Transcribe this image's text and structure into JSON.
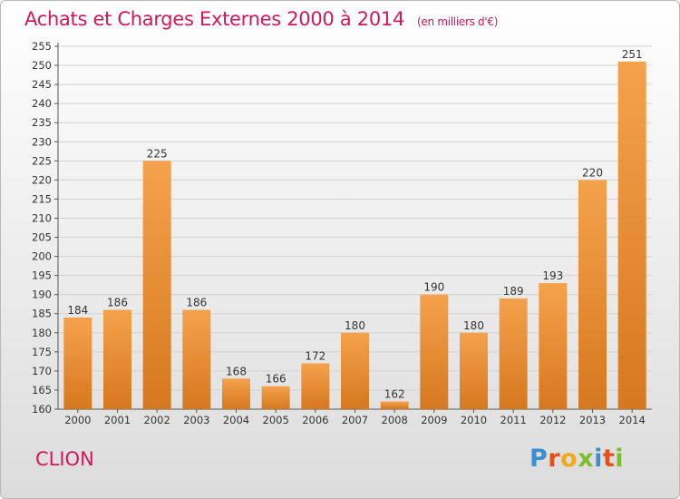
{
  "title": "Achats et Charges Externes 2000 à 2014",
  "unit_note": "(en milliers d'€)",
  "city": "CLION",
  "logo": {
    "letters": [
      "P",
      "r",
      "o",
      "x",
      "i",
      "t",
      "i"
    ]
  },
  "colors": {
    "bar_light": "#f5a24c",
    "bar_dark": "#d6781f",
    "text_accent": "#d0185a"
  },
  "chart_data": {
    "type": "bar",
    "categories": [
      "2000",
      "2001",
      "2002",
      "2003",
      "2004",
      "2005",
      "2006",
      "2007",
      "2008",
      "2009",
      "2010",
      "2011",
      "2012",
      "2013",
      "2014"
    ],
    "values": [
      184,
      186,
      225,
      186,
      168,
      166,
      172,
      180,
      162,
      190,
      180,
      189,
      193,
      220,
      251
    ],
    "ylim": [
      160,
      255
    ],
    "yticks": [
      160,
      165,
      170,
      175,
      180,
      185,
      190,
      195,
      200,
      205,
      210,
      215,
      220,
      225,
      230,
      235,
      240,
      245,
      250,
      255
    ],
    "grid": true,
    "data_labels": true
  }
}
